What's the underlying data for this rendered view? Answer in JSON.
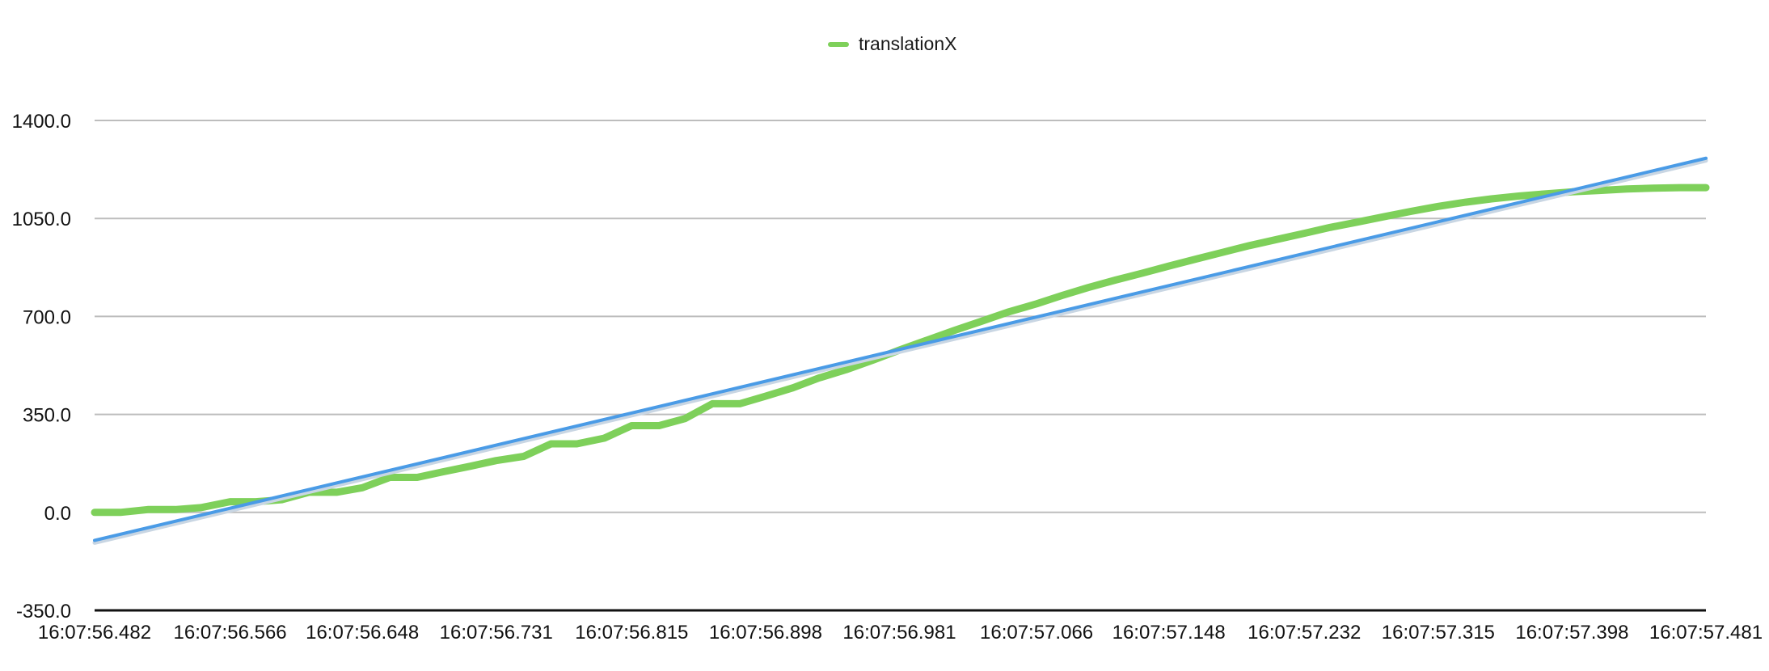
{
  "colors": {
    "series": "#7ed05a",
    "trend": "#4a9be6",
    "grid": "#bdbdbd",
    "axis": "#111111"
  },
  "legend": {
    "label": "translationX",
    "placement": "top-center"
  },
  "chart_data": {
    "type": "line",
    "title": "",
    "xlabel": "",
    "ylabel": "",
    "ylim": [
      -350,
      1400
    ],
    "y_ticks": [
      "-350.0",
      "0.0",
      "350.0",
      "700.0",
      "1050.0",
      "1400.0"
    ],
    "y_tick_values": [
      -350,
      0,
      350,
      700,
      1050,
      1400
    ],
    "x_ticks": [
      "16:07:56.482",
      "16:07:56.566",
      "16:07:56.648",
      "16:07:56.731",
      "16:07:56.815",
      "16:07:56.898",
      "16:07:56.981",
      "16:07:57.066",
      "16:07:57.148",
      "16:07:57.232",
      "16:07:57.315",
      "16:07:57.398",
      "16:07:57.481"
    ],
    "grid": true,
    "series": [
      {
        "name": "translationX",
        "x": [
          "16:07:56.482",
          "16:07:56.498",
          "16:07:56.515",
          "16:07:56.532",
          "16:07:56.548",
          "16:07:56.566",
          "16:07:56.582",
          "16:07:56.598",
          "16:07:56.615",
          "16:07:56.632",
          "16:07:56.648",
          "16:07:56.665",
          "16:07:56.682",
          "16:07:56.698",
          "16:07:56.715",
          "16:07:56.731",
          "16:07:56.748",
          "16:07:56.765",
          "16:07:56.781",
          "16:07:56.798",
          "16:07:56.815",
          "16:07:56.832",
          "16:07:56.848",
          "16:07:56.865",
          "16:07:56.882",
          "16:07:56.898",
          "16:07:56.915",
          "16:07:56.931",
          "16:07:56.948",
          "16:07:56.965",
          "16:07:56.981",
          "16:07:56.998",
          "16:07:57.015",
          "16:07:57.032",
          "16:07:57.048",
          "16:07:57.066",
          "16:07:57.082",
          "16:07:57.098",
          "16:07:57.115",
          "16:07:57.132",
          "16:07:57.148",
          "16:07:57.165",
          "16:07:57.182",
          "16:07:57.198",
          "16:07:57.215",
          "16:07:57.232",
          "16:07:57.248",
          "16:07:57.265",
          "16:07:57.282",
          "16:07:57.298",
          "16:07:57.315",
          "16:07:57.332",
          "16:07:57.348",
          "16:07:57.365",
          "16:07:57.382",
          "16:07:57.398",
          "16:07:57.415",
          "16:07:57.432",
          "16:07:57.448",
          "16:07:57.465",
          "16:07:57.481"
        ],
        "values": [
          0,
          0,
          10,
          10,
          17,
          38,
          38,
          45,
          72,
          72,
          88,
          125,
          125,
          145,
          165,
          185,
          200,
          245,
          245,
          265,
          310,
          310,
          335,
          388,
          388,
          415,
          445,
          480,
          510,
          545,
          580,
          615,
          650,
          683,
          715,
          745,
          775,
          803,
          830,
          855,
          880,
          905,
          930,
          953,
          975,
          997,
          1018,
          1037,
          1057,
          1075,
          1093,
          1108,
          1120,
          1130,
          1138,
          1145,
          1150,
          1155,
          1158,
          1160,
          1160
        ]
      }
    ],
    "trendline": {
      "x": [
        "16:07:56.482",
        "16:07:57.481"
      ],
      "values": [
        -100,
        1265
      ]
    }
  }
}
